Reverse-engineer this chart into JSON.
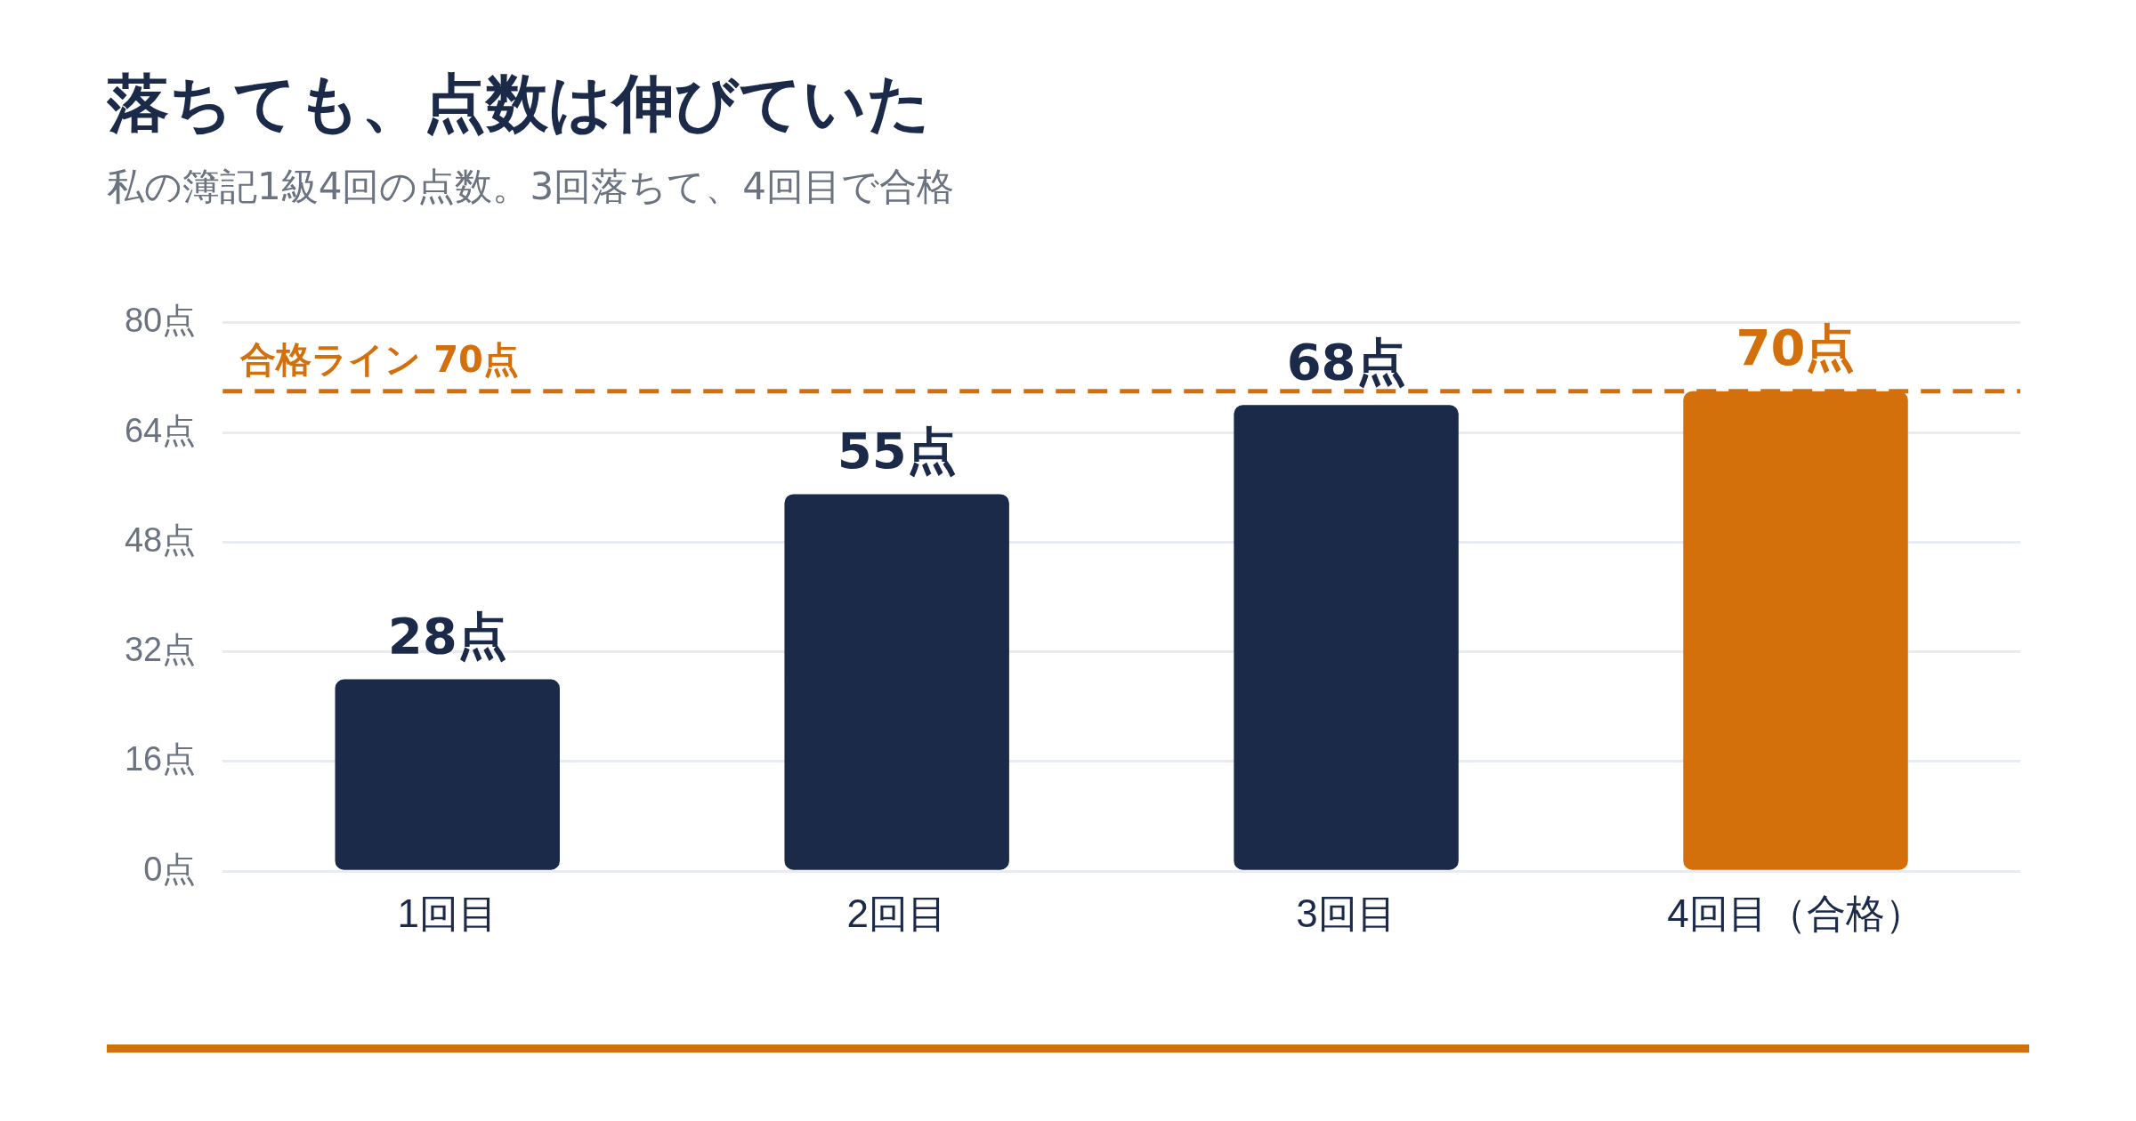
{
  "chart_data": {
    "type": "bar",
    "title": "落ちても、点数は伸びていた",
    "subtitle": "私の簿記1級4回の点数。3回落ちて、4回目で合格",
    "categories": [
      "1回目",
      "2回目",
      "3回目",
      "4回目（合格）"
    ],
    "values": [
      28,
      55,
      68,
      70
    ],
    "colors": [
      "#1c2a4a",
      "#1c2a4a",
      "#1c2a4a",
      "#d4700c"
    ],
    "value_labels": [
      "28点",
      "55点",
      "68点",
      "70点"
    ],
    "ylim": [
      0,
      80
    ],
    "yticks": [
      {
        "value": 0,
        "label": "0点"
      },
      {
        "value": 16,
        "label": "16点"
      },
      {
        "value": 32,
        "label": "32点"
      },
      {
        "value": 48,
        "label": "48点"
      },
      {
        "value": 64,
        "label": "64点"
      },
      {
        "value": 80,
        "label": "80点"
      }
    ],
    "ref_lines": [
      {
        "axis": "y",
        "value": 70,
        "label": "合格ライン 70点",
        "color": "#d4700c",
        "line_style": "dashed"
      }
    ],
    "grid": "y",
    "legend": false
  }
}
